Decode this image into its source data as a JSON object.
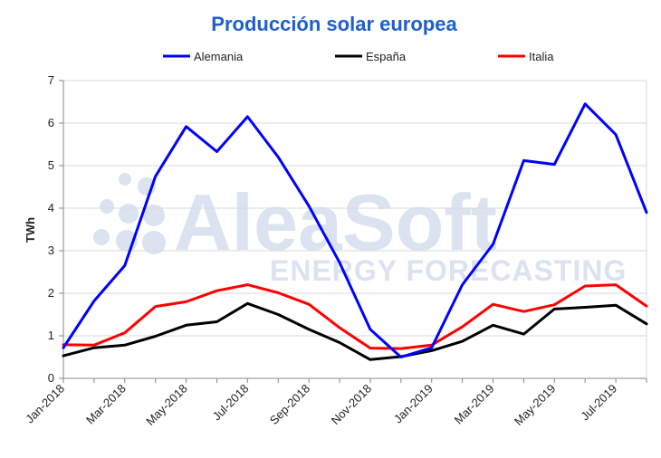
{
  "colors": {
    "title": "#1f5fc8",
    "alemania": "#0000ff",
    "espana": "#000000",
    "italia": "#ff0000",
    "grid": "#d9d9d9",
    "watermark": "#dbe3f1"
  },
  "watermark": {
    "brand": "AleaSoft",
    "tagline": "ENERGY FORECASTING"
  },
  "chart_data": {
    "type": "line",
    "title": "Producción solar europea",
    "xlabel": "",
    "ylabel": "TWh",
    "ylim": [
      0,
      7
    ],
    "yticks": [
      "0",
      "1",
      "2",
      "3",
      "4",
      "5",
      "6",
      "7"
    ],
    "grid": true,
    "legend_position": "top",
    "categories": [
      "Jan-2018",
      "Feb-2018",
      "Mar-2018",
      "Apr-2018",
      "May-2018",
      "Jun-2018",
      "Jul-2018",
      "Aug-2018",
      "Sep-2018",
      "Oct-2018",
      "Nov-2018",
      "Dec-2018",
      "Jan-2019",
      "Feb-2019",
      "Mar-2019",
      "Apr-2019",
      "May-2019",
      "Jun-2019",
      "Jul-2019",
      "Aug-2019"
    ],
    "tick_labels": [
      "Jan-2018",
      "Mar-2018",
      "May-2018",
      "Jul-2018",
      "Sep-2018",
      "Nov-2018",
      "Jan-2019",
      "Mar-2019",
      "May-2019",
      "Jul-2019"
    ],
    "series": [
      {
        "name": "Alemania",
        "color_key": "alemania",
        "values": [
          0.72,
          1.82,
          2.65,
          4.75,
          5.92,
          5.33,
          6.15,
          5.2,
          4.05,
          2.72,
          1.15,
          0.5,
          0.72,
          2.2,
          3.15,
          5.12,
          5.03,
          6.45,
          5.73,
          3.9
        ]
      },
      {
        "name": "España",
        "color_key": "espana",
        "values": [
          0.53,
          0.72,
          0.78,
          0.99,
          1.25,
          1.33,
          1.76,
          1.5,
          1.15,
          0.84,
          0.44,
          0.51,
          0.65,
          0.87,
          1.25,
          1.04,
          1.63,
          1.67,
          1.72,
          1.28
        ]
      },
      {
        "name": "Italia",
        "color_key": "italia",
        "values": [
          0.79,
          0.78,
          1.07,
          1.69,
          1.8,
          2.06,
          2.2,
          2.01,
          1.74,
          1.19,
          0.71,
          0.7,
          0.78,
          1.21,
          1.74,
          1.57,
          1.73,
          2.17,
          2.2,
          1.7
        ]
      }
    ]
  }
}
